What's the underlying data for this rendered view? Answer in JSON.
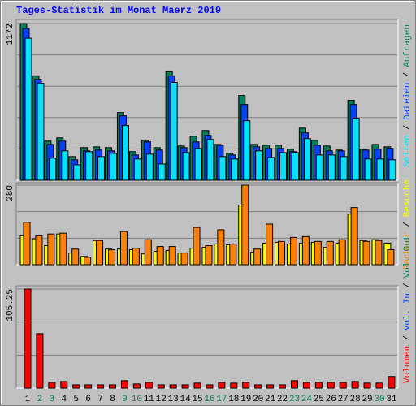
{
  "chart_data": [
    {
      "type": "bar",
      "title": "Tages-Statistik im Monat Maerz 2019",
      "separator": "/",
      "categories": [
        "1",
        "2",
        "3",
        "4",
        "5",
        "6",
        "7",
        "8",
        "9",
        "10",
        "11",
        "12",
        "13",
        "14",
        "15",
        "16",
        "17",
        "18",
        "19",
        "20",
        "21",
        "22",
        "23",
        "24",
        "25",
        "26",
        "27",
        "28",
        "29",
        "30",
        "31"
      ],
      "series": [
        {
          "name": "Anfragen",
          "color": "#00805c",
          "values": [
            1172,
            781,
            293,
            317,
            177,
            244,
            250,
            244,
            506,
            214,
            299,
            244,
            811,
            256,
            329,
            372,
            268,
            201,
            634,
            268,
            262,
            262,
            232,
            390,
            299,
            256,
            226,
            598,
            232,
            268,
            250
          ]
        },
        {
          "name": "Dateien",
          "color": "#0040ff",
          "values": [
            1135,
            756,
            268,
            293,
            153,
            220,
            226,
            220,
            482,
            189,
            287,
            226,
            781,
            244,
            287,
            336,
            262,
            189,
            567,
            250,
            238,
            238,
            214,
            354,
            262,
            220,
            220,
            567,
            226,
            232,
            238
          ]
        },
        {
          "name": "Seiten",
          "color": "#00e0ff",
          "values": [
            1062,
            726,
            165,
            220,
            116,
            214,
            177,
            201,
            409,
            159,
            195,
            122,
            732,
            207,
            238,
            305,
            177,
            159,
            445,
            220,
            171,
            207,
            207,
            311,
            189,
            189,
            177,
            464,
            159,
            159,
            153
          ]
        }
      ],
      "ylim": [
        0,
        1172
      ],
      "yticks": [
        1172
      ],
      "grid": true
    },
    {
      "type": "bar",
      "separator": "/",
      "categories": [
        "1",
        "2",
        "3",
        "4",
        "5",
        "6",
        "7",
        "8",
        "9",
        "10",
        "11",
        "12",
        "13",
        "14",
        "15",
        "16",
        "17",
        "18",
        "19",
        "20",
        "21",
        "22",
        "23",
        "24",
        "25",
        "26",
        "27",
        "28",
        "29",
        "30",
        "31"
      ],
      "series": [
        {
          "name": "Besuche",
          "color": "#ffff00",
          "values": [
            102,
            91,
            67,
            108,
            41,
            29,
            85,
            55,
            55,
            53,
            38,
            47,
            50,
            41,
            58,
            61,
            73,
            70,
            210,
            44,
            76,
            79,
            73,
            76,
            79,
            61,
            76,
            178,
            85,
            88,
            76
          ]
        },
        {
          "name": "Rechner",
          "color": "#ff8000",
          "values": [
            149,
            102,
            108,
            111,
            55,
            26,
            85,
            53,
            117,
            58,
            88,
            64,
            64,
            41,
            131,
            67,
            123,
            73,
            280,
            55,
            143,
            82,
            96,
            99,
            82,
            82,
            88,
            201,
            82,
            85,
            53
          ]
        }
      ],
      "ylim": [
        0,
        280
      ],
      "yticks": [
        280
      ],
      "grid": true
    },
    {
      "type": "bar",
      "separator": "/",
      "categories": [
        "1",
        "2",
        "3",
        "4",
        "5",
        "6",
        "7",
        "8",
        "9",
        "10",
        "11",
        "12",
        "13",
        "14",
        "15",
        "16",
        "17",
        "18",
        "19",
        "20",
        "21",
        "22",
        "23",
        "24",
        "25",
        "26",
        "27",
        "28",
        "29",
        "30",
        "31"
      ],
      "category_colors": [
        "#000000",
        "#00805c",
        "#00805c",
        "#000000",
        "#000000",
        "#000000",
        "#000000",
        "#000000",
        "#00805c",
        "#00805c",
        "#000000",
        "#000000",
        "#000000",
        "#000000",
        "#000000",
        "#00805c",
        "#00805c",
        "#000000",
        "#000000",
        "#000000",
        "#000000",
        "#000000",
        "#00805c",
        "#00805c",
        "#000000",
        "#000000",
        "#000000",
        "#000000",
        "#000000",
        "#00805c",
        "#000000"
      ],
      "series": [
        {
          "name": "Volumen",
          "color": "#ff0000",
          "values": [
            105.25,
            57.9,
            6.1,
            7,
            3.5,
            3.5,
            3.5,
            3.5,
            7.9,
            4.4,
            6.1,
            3.5,
            3.5,
            3.5,
            5.3,
            3.5,
            6.1,
            5.3,
            6.1,
            3.5,
            3.5,
            3.5,
            7.9,
            6.1,
            6.1,
            6.1,
            6.1,
            7,
            5.3,
            5.3,
            12.3
          ]
        },
        {
          "name": "Vol. In",
          "color": "#0040ff"
        },
        {
          "name": "Vol. Out",
          "color": "#00805c"
        }
      ],
      "ylim": [
        0,
        105.25
      ],
      "yticks": [
        105.25
      ],
      "grid": true
    }
  ]
}
